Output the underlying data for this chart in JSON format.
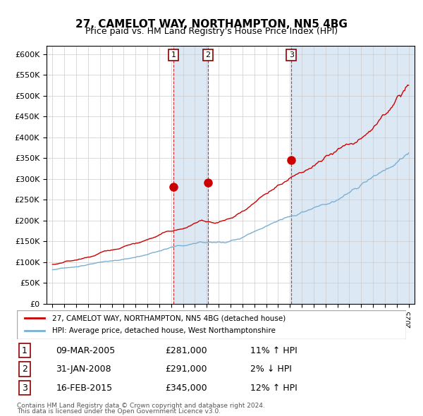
{
  "title": "27, CAMELOT WAY, NORTHAMPTON, NN5 4BG",
  "subtitle": "Price paid vs. HM Land Registry's House Price Index (HPI)",
  "legend_line1": "27, CAMELOT WAY, NORTHAMPTON, NN5 4BG (detached house)",
  "legend_line2": "HPI: Average price, detached house, West Northamptonshire",
  "footer1": "Contains HM Land Registry data © Crown copyright and database right 2024.",
  "footer2": "This data is licensed under the Open Government Licence v3.0.",
  "transactions": [
    {
      "num": 1,
      "date": "09-MAR-2005",
      "price": 281000,
      "pct": "11%",
      "dir": "↑"
    },
    {
      "num": 2,
      "date": "31-JAN-2008",
      "price": 291000,
      "pct": "2%",
      "dir": "↓"
    },
    {
      "num": 3,
      "date": "16-FEB-2015",
      "price": 345000,
      "pct": "12%",
      "dir": "↑"
    }
  ],
  "transaction_years": [
    2005.19,
    2008.08,
    2015.12
  ],
  "transaction_prices": [
    281000,
    291000,
    345000
  ],
  "bg_shade_ranges": [
    [
      2005.19,
      2008.08
    ],
    [
      2015.12,
      2015.12
    ]
  ],
  "red_color": "#cc0000",
  "blue_color": "#7ab0d4",
  "shade_color": "#dce9f5",
  "grid_color": "#cccccc",
  "ylim": [
    0,
    620000
  ],
  "yticks": [
    0,
    50000,
    100000,
    150000,
    200000,
    250000,
    300000,
    350000,
    400000,
    450000,
    500000,
    550000,
    600000
  ],
  "xlim_start": 1994.5,
  "xlim_end": 2025.5
}
